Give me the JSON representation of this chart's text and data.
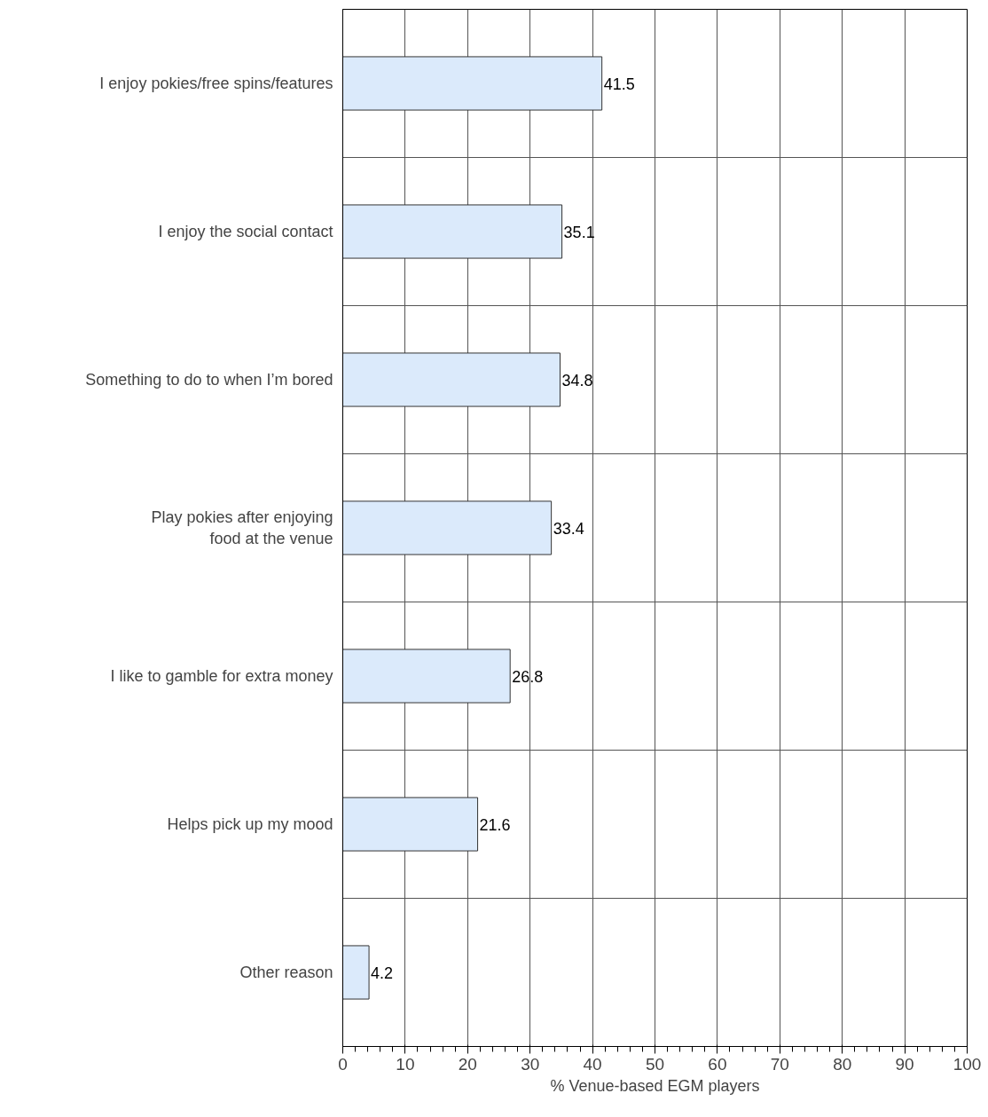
{
  "chart_data": {
    "type": "bar",
    "orientation": "horizontal",
    "xlabel": "% Venue-based EGM players",
    "categories": [
      "I enjoy pokies/free spins/features",
      "I enjoy the social contact",
      "Something to do to when I’m bored",
      "Play pokies after enjoying\nfood at the venue",
      "I like to gamble for extra money",
      "Helps pick up my mood",
      "Other reason"
    ],
    "values": [
      41.5,
      35.1,
      34.8,
      33.4,
      26.8,
      21.6,
      4.2
    ],
    "color": "#dbeafb",
    "xlim": [
      0,
      100
    ],
    "xticks": [
      0,
      10,
      20,
      30,
      40,
      50,
      60,
      70,
      80,
      90,
      100
    ],
    "grid": true,
    "data_labels": true
  }
}
